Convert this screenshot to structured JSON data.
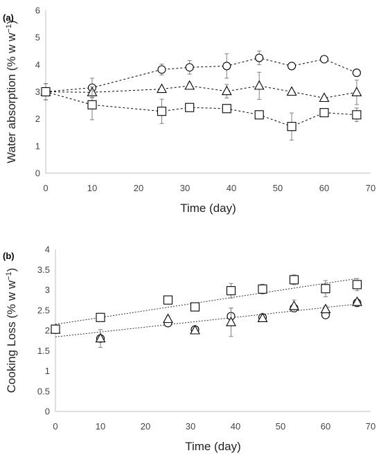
{
  "chart_data": [
    {
      "type": "line",
      "panel_label": "(a)",
      "xlabel": "Time (day)",
      "ylabel": "Water absorption (% w w",
      "ylabel_sup": "−1",
      "ylabel_close": ")",
      "xlim": [
        0,
        70
      ],
      "ylim": [
        0,
        6
      ],
      "xticks": [
        0,
        10,
        20,
        30,
        40,
        50,
        60,
        70
      ],
      "yticks": [
        0,
        1,
        2,
        3,
        4,
        5,
        6
      ],
      "x": [
        0,
        10,
        25,
        31,
        39,
        46,
        53,
        60,
        67
      ],
      "series": [
        {
          "marker": "circle",
          "values": [
            3.0,
            3.15,
            3.82,
            3.9,
            3.95,
            4.25,
            3.95,
            4.2,
            3.7
          ],
          "errors": [
            0.3,
            0.35,
            0.2,
            0.25,
            0.45,
            0.25,
            0.1,
            0.12,
            0.1
          ]
        },
        {
          "marker": "triangle",
          "values": [
            3.0,
            2.98,
            3.1,
            3.22,
            3.02,
            3.22,
            3.0,
            2.77,
            2.98
          ],
          "errors": [
            0.3,
            0.2,
            0.08,
            0.1,
            0.25,
            0.5,
            0.05,
            0.05,
            0.45
          ]
        },
        {
          "marker": "square",
          "values": [
            3.0,
            2.52,
            2.28,
            2.42,
            2.38,
            2.15,
            1.72,
            2.23,
            2.15
          ],
          "errors": [
            0.3,
            0.55,
            0.45,
            0.05,
            0.05,
            0.1,
            0.5,
            0.1,
            0.25
          ]
        }
      ]
    },
    {
      "type": "scatter",
      "panel_label": "(b)",
      "xlabel": "Time (day)",
      "ylabel": "Cooking Loss (% w w",
      "ylabel_sup": "−1",
      "ylabel_close": ")",
      "xlim": [
        0,
        70
      ],
      "ylim": [
        0,
        4
      ],
      "xticks": [
        0,
        10,
        20,
        30,
        40,
        50,
        60,
        70
      ],
      "yticks": [
        0,
        0.5,
        1,
        1.5,
        2,
        2.5,
        3,
        3.5,
        4
      ],
      "ytick_labels": [
        "0",
        "0.5",
        "1",
        "1.5",
        "2",
        "2.5",
        "3",
        "3.5",
        "4"
      ],
      "x": [
        0,
        10,
        25,
        31,
        39,
        46,
        53,
        60,
        67
      ],
      "series": [
        {
          "marker": "circle",
          "values": [
            2.02,
            1.8,
            2.18,
            2.02,
            2.35,
            2.32,
            2.55,
            2.38,
            2.68
          ],
          "errors": [
            0.05,
            0.08,
            0.05,
            0.05,
            0.2,
            0.05,
            0.05,
            0.05,
            0.05
          ]
        },
        {
          "marker": "triangle",
          "values": [
            2.02,
            1.8,
            2.28,
            2.0,
            2.2,
            2.3,
            2.6,
            2.52,
            2.7
          ],
          "errors": [
            0.05,
            0.22,
            0.08,
            0.05,
            0.35,
            0.05,
            0.15,
            0.08,
            0.05
          ]
        },
        {
          "marker": "square",
          "values": [
            2.03,
            2.32,
            2.75,
            2.58,
            2.98,
            3.02,
            3.25,
            3.03,
            3.13
          ],
          "errors": [
            0.05,
            0.08,
            0.08,
            0.05,
            0.18,
            0.12,
            0.12,
            0.2,
            0.15
          ]
        }
      ],
      "trendlines": [
        {
          "from": [
            0,
            2.15
          ],
          "to": [
            67,
            3.28
          ]
        },
        {
          "from": [
            0,
            1.84
          ],
          "to": [
            67,
            2.65
          ]
        }
      ]
    }
  ]
}
